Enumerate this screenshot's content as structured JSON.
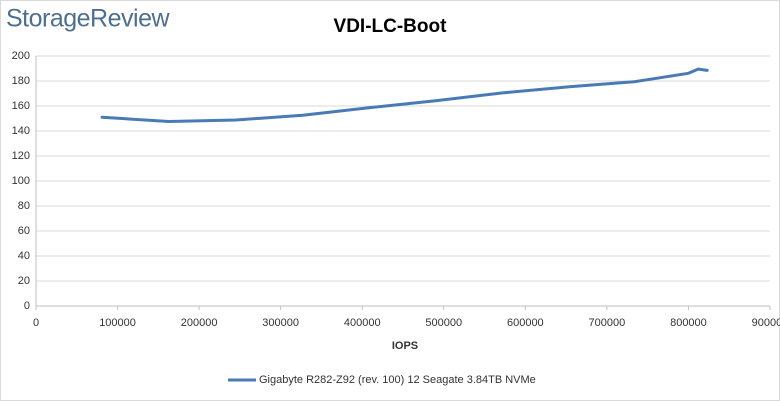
{
  "logo": "StorageReview",
  "chart_data": {
    "type": "line",
    "title": "VDI-LC-Boot",
    "x_label": "IOPS",
    "x": [
      81000,
      163000,
      245000,
      327000,
      408000,
      490000,
      572000,
      654000,
      733000,
      800000,
      812000,
      823000
    ],
    "series": [
      {
        "name": "Gigabyte R282-Z92 (rev. 100) 12 Seagate 3.84TB NVMe",
        "color": "#4a7ab5",
        "values": [
          151,
          147.6,
          148.8,
          152.6,
          158.6,
          164.2,
          170.5,
          175.4,
          179.4,
          186.2,
          189.5,
          188.5
        ]
      }
    ],
    "xlim": [
      0,
      900000
    ],
    "xticks": [
      0,
      100000,
      200000,
      300000,
      400000,
      500000,
      600000,
      700000,
      800000,
      900000
    ],
    "ylim": [
      0,
      200
    ],
    "yticks": [
      0,
      20,
      40,
      60,
      80,
      100,
      120,
      140,
      160,
      180,
      200
    ],
    "grid": true,
    "legend": "bottom"
  }
}
